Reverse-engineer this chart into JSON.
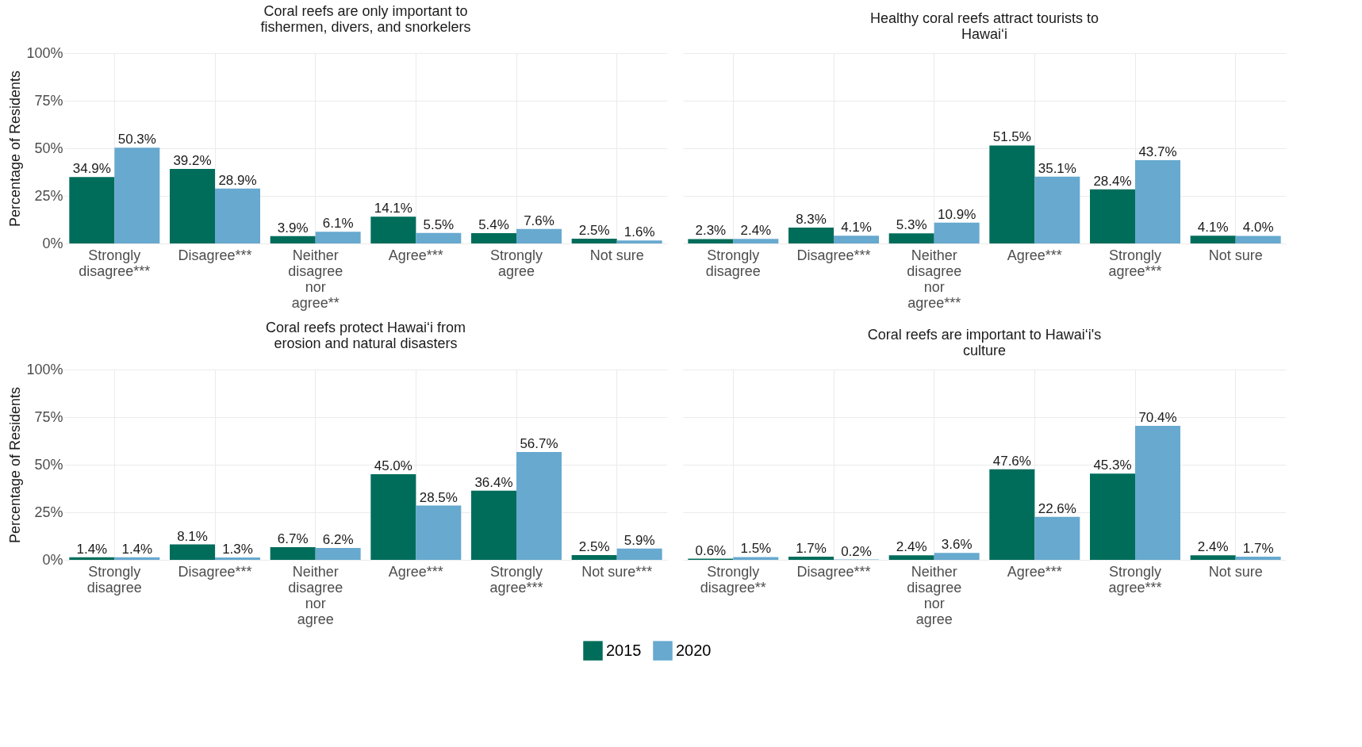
{
  "chart_data": [
    {
      "type": "bar",
      "title": "Coral reefs are only important to fishermen, divers, and snorkelers",
      "ylabel": "Percentage of Residents",
      "categories": [
        "Strongly disagree***",
        "Disagree***",
        "Neither disagree nor agree**",
        "Agree***",
        "Strongly agree",
        "Not sure"
      ],
      "ylim": [
        0,
        100
      ],
      "yticks": [
        {
          "value": 0,
          "label": "0%"
        },
        {
          "value": 25,
          "label": "25%"
        },
        {
          "value": 50,
          "label": "50%"
        },
        {
          "value": 75,
          "label": "75%"
        },
        {
          "value": 100,
          "label": "100%"
        }
      ],
      "grid": true,
      "legend": "bottom",
      "series": [
        {
          "name": "2015",
          "color": "#006d5b",
          "values": [
            34.9,
            39.2,
            3.9,
            14.1,
            5.4,
            2.5
          ],
          "value_labels": [
            "34.9%",
            "39.2%",
            "3.9%",
            "14.1%",
            "5.4%",
            "2.5%"
          ]
        },
        {
          "name": "2020",
          "color": "#67a9cf",
          "values": [
            50.3,
            28.9,
            6.1,
            5.5,
            7.6,
            1.6
          ],
          "value_labels": [
            "50.3%",
            "28.9%",
            "6.1%",
            "5.5%",
            "7.6%",
            "1.6%"
          ]
        }
      ]
    },
    {
      "type": "bar",
      "title": "Healthy coral reefs attract tourists to Hawai‘i",
      "categories": [
        "Strongly disagree",
        "Disagree***",
        "Neither disagree nor agree***",
        "Agree***",
        "Strongly agree***",
        "Not sure"
      ],
      "ylim": [
        0,
        100
      ],
      "yticks": [
        {
          "value": 0,
          "label": null
        },
        {
          "value": 25,
          "label": null
        },
        {
          "value": 50,
          "label": null
        },
        {
          "value": 75,
          "label": null
        },
        {
          "value": 100,
          "label": null
        }
      ],
      "tick_labels": "x",
      "grid": true,
      "legend": "bottom",
      "series": [
        {
          "name": "2015",
          "color": "#006d5b",
          "values": [
            2.3,
            8.3,
            5.3,
            51.5,
            28.4,
            4.1
          ],
          "value_labels": [
            "2.3%",
            "8.3%",
            "5.3%",
            "51.5%",
            "28.4%",
            "4.1%"
          ]
        },
        {
          "name": "2020",
          "color": "#67a9cf",
          "values": [
            2.4,
            4.1,
            10.9,
            35.1,
            43.7,
            4.0
          ],
          "value_labels": [
            "2.4%",
            "4.1%",
            "10.9%",
            "35.1%",
            "43.7%",
            "4.0%"
          ]
        }
      ]
    },
    {
      "type": "bar",
      "title": "Coral reefs protect Hawai‘i from erosion and natural disasters",
      "ylabel": "Percentage of Residents",
      "categories": [
        "Strongly disagree",
        "Disagree***",
        "Neither disagree nor agree",
        "Agree***",
        "Strongly agree***",
        "Not sure***"
      ],
      "ylim": [
        0,
        100
      ],
      "yticks": [
        {
          "value": 0,
          "label": "0%"
        },
        {
          "value": 25,
          "label": "25%"
        },
        {
          "value": 50,
          "label": "50%"
        },
        {
          "value": 75,
          "label": "75%"
        },
        {
          "value": 100,
          "label": "100%"
        }
      ],
      "grid": true,
      "legend": "bottom",
      "series": [
        {
          "name": "2015",
          "color": "#006d5b",
          "values": [
            1.4,
            8.1,
            6.7,
            45.0,
            36.4,
            2.5
          ],
          "value_labels": [
            "1.4%",
            "8.1%",
            "6.7%",
            "45.0%",
            "36.4%",
            "2.5%"
          ]
        },
        {
          "name": "2020",
          "color": "#67a9cf",
          "values": [
            1.4,
            1.3,
            6.2,
            28.5,
            56.7,
            5.9
          ],
          "value_labels": [
            "1.4%",
            "1.3%",
            "6.2%",
            "28.5%",
            "56.7%",
            "5.9%"
          ]
        }
      ]
    },
    {
      "type": "bar",
      "title": "Coral reefs are important to Hawai‘i's culture",
      "categories": [
        "Strongly disagree**",
        "Disagree***",
        "Neither disagree nor agree",
        "Agree***",
        "Strongly agree***",
        "Not sure"
      ],
      "ylim": [
        0,
        100
      ],
      "yticks": [
        {
          "value": 0,
          "label": null
        },
        {
          "value": 25,
          "label": null
        },
        {
          "value": 50,
          "label": null
        },
        {
          "value": 75,
          "label": null
        },
        {
          "value": 100,
          "label": null
        }
      ],
      "tick_labels": "x",
      "grid": true,
      "legend": "bottom",
      "series": [
        {
          "name": "2015",
          "color": "#006d5b",
          "values": [
            0.6,
            1.7,
            2.4,
            47.6,
            45.3,
            2.4
          ],
          "value_labels": [
            "0.6%",
            "1.7%",
            "2.4%",
            "47.6%",
            "45.3%",
            "2.4%"
          ]
        },
        {
          "name": "2020",
          "color": "#67a9cf",
          "values": [
            1.5,
            0.2,
            3.6,
            22.6,
            70.4,
            1.7
          ],
          "value_labels": [
            "1.5%",
            "0.2%",
            "3.6%",
            "22.6%",
            "70.4%",
            "1.7%"
          ]
        }
      ]
    }
  ]
}
